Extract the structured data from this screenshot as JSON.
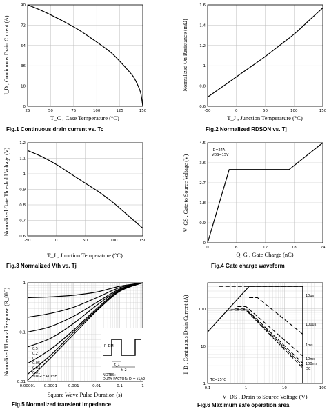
{
  "chart_data": [
    {
      "type": "line",
      "caption": "Fig.1  Continuous drain current vs. Tc",
      "xlabel": "T_C , Case Temperature (°C)",
      "ylabel": "I_D , Continuous Drain Current (A)",
      "xlim": [
        25,
        150
      ],
      "ylim": [
        0,
        90
      ],
      "xticks": [
        "25",
        "50",
        "75",
        "100",
        "125",
        "150"
      ],
      "yticks": [
        "0",
        "18",
        "36",
        "54",
        "72",
        "90"
      ],
      "grid": true,
      "x": [
        25,
        40,
        60,
        80,
        100,
        115,
        125,
        135,
        140,
        145,
        148,
        150
      ],
      "y": [
        90,
        85,
        77,
        68,
        57,
        48,
        40,
        31,
        26,
        18,
        11,
        0
      ]
    },
    {
      "type": "line",
      "caption": "Fig.2 Normalized RDSON vs. Tj",
      "xlabel": "T_J , Junction Temperature (°C)",
      "ylabel": "Normalized On Resistance (mΩ)",
      "xlim": [
        -50,
        150
      ],
      "ylim": [
        0.6,
        1.6
      ],
      "xticks": [
        "-50",
        "0",
        "50",
        "100",
        "150"
      ],
      "yticks": [
        "0.6",
        "0.8",
        "1",
        "1.2",
        "1.4",
        "1.6"
      ],
      "grid": true,
      "x": [
        -50,
        -25,
        0,
        25,
        50,
        75,
        100,
        125,
        150
      ],
      "y": [
        0.69,
        0.79,
        0.89,
        0.99,
        1.09,
        1.2,
        1.31,
        1.44,
        1.57
      ]
    },
    {
      "type": "line",
      "caption": "Fig.3 Normalized Vth vs. Tj",
      "xlabel": "T_J , Junction Temperature (°C)",
      "ylabel": "Normalized Gate Threshold Voltage (V)",
      "xlim": [
        -50,
        150
      ],
      "ylim": [
        0.6,
        1.2
      ],
      "xticks": [
        "-50",
        "0",
        "50",
        "100",
        "150"
      ],
      "yticks": [
        "0.6",
        "0.7",
        "0.8",
        "0.9",
        "1",
        "1.1",
        "1.2"
      ],
      "grid": true,
      "x": [
        -50,
        -25,
        0,
        25,
        50,
        75,
        100,
        125,
        150
      ],
      "y": [
        1.15,
        1.11,
        1.06,
        1.0,
        0.94,
        0.88,
        0.81,
        0.73,
        0.65
      ]
    },
    {
      "type": "line",
      "caption": "Fig.4  Gate charge waveform",
      "xlabel": "Q_G , Gate Charge (nC)",
      "ylabel": "V_GS , Gate to Source Voltage (V)",
      "xlim": [
        0,
        24
      ],
      "ylim": [
        0,
        4.5
      ],
      "xticks": [
        "0",
        "6",
        "12",
        "18",
        "24"
      ],
      "yticks": [
        "0",
        "0.9",
        "1.8",
        "2.7",
        "3.6",
        "4.5"
      ],
      "grid": true,
      "annotations": [
        "ID=24A",
        "VDS=15V"
      ],
      "x": [
        0,
        4.5,
        17,
        24
      ],
      "y": [
        0,
        3.3,
        3.3,
        4.5
      ]
    },
    {
      "type": "line",
      "caption": "Fig.5 Normalized transient impedance",
      "xlabel": "Square Wave Pulse Duration (s)",
      "ylabel": "Normalized Thermal Response (R_θJC)",
      "xscale": "log",
      "yscale": "log",
      "xlim": [
        1e-05,
        1
      ],
      "ylim": [
        0.01,
        1
      ],
      "xticks": [
        "0.00001",
        "0.0001",
        "0.001",
        "0.01",
        "0.1",
        "1"
      ],
      "yticks": [
        "0.01",
        "0.1",
        "1"
      ],
      "grid": true,
      "legend": [
        "0.5",
        "0.2",
        "0.1",
        "0.05",
        "0.02",
        "0.01",
        "SINGLE PULSE"
      ],
      "inset_labels": {
        "pdm": "P_DM",
        "t1": "t_1",
        "t2": "t_2"
      },
      "notes": [
        "NOTES:",
        "DUTY FACTOR: D = t1/t2"
      ],
      "x": [
        1e-05,
        0.0001,
        0.001,
        0.01,
        0.1,
        1
      ],
      "series": [
        {
          "name": "0.5",
          "values": [
            0.5,
            0.52,
            0.56,
            0.65,
            0.85,
            1.0
          ]
        },
        {
          "name": "0.2",
          "values": [
            0.2,
            0.24,
            0.32,
            0.5,
            0.8,
            1.0
          ]
        },
        {
          "name": "0.1",
          "values": [
            0.1,
            0.13,
            0.21,
            0.4,
            0.75,
            1.0
          ]
        },
        {
          "name": "0.05",
          "values": [
            0.05,
            0.075,
            0.15,
            0.35,
            0.72,
            1.0
          ]
        },
        {
          "name": "0.02",
          "values": [
            0.023,
            0.045,
            0.11,
            0.3,
            0.7,
            1.0
          ]
        },
        {
          "name": "0.01",
          "values": [
            0.014,
            0.034,
            0.1,
            0.28,
            0.68,
            1.0
          ]
        },
        {
          "name": "SINGLE PULSE",
          "values": [
            0.0105,
            0.03,
            0.09,
            0.27,
            0.67,
            1.0
          ]
        }
      ]
    },
    {
      "type": "line",
      "caption": "Fig.6  Maximum safe operation area",
      "xlabel": "V_DS , Drain to Source Voltage (V)",
      "ylabel": "I_D , Continuous Drain Current (A)",
      "xscale": "log",
      "yscale": "log",
      "xlim": [
        0.1,
        100
      ],
      "ylim": [
        1,
        500
      ],
      "xticks": [
        "0.1",
        "1",
        "10",
        "100"
      ],
      "yticks": [
        "1",
        "10",
        "100"
      ],
      "grid": true,
      "annotations": [
        "TC=25°C"
      ],
      "limit_line": {
        "x": [
          0.1,
          1.2,
          30,
          30
        ],
        "y": [
          24,
          400,
          400,
          1
        ]
      },
      "series": [
        {
          "name": "10us",
          "x": [
            0.2,
            30
          ],
          "y": [
            400,
            400
          ]
        },
        {
          "name": "100us",
          "x": [
            1.2,
            2,
            30
          ],
          "y": [
            200,
            200,
            21
          ]
        },
        {
          "name": "1ms",
          "x": [
            0.6,
            1,
            30
          ],
          "y": [
            115,
            115,
            5.5
          ]
        },
        {
          "name": "10ms",
          "x": [
            0.5,
            1,
            30
          ],
          "y": [
            100,
            100,
            3.5
          ]
        },
        {
          "name": "100ms",
          "x": [
            0.4,
            1,
            30
          ],
          "y": [
            95,
            95,
            3
          ]
        },
        {
          "name": "DC",
          "x": [
            0.35,
            1,
            30
          ],
          "y": [
            92,
            92,
            2.6
          ]
        }
      ]
    }
  ]
}
